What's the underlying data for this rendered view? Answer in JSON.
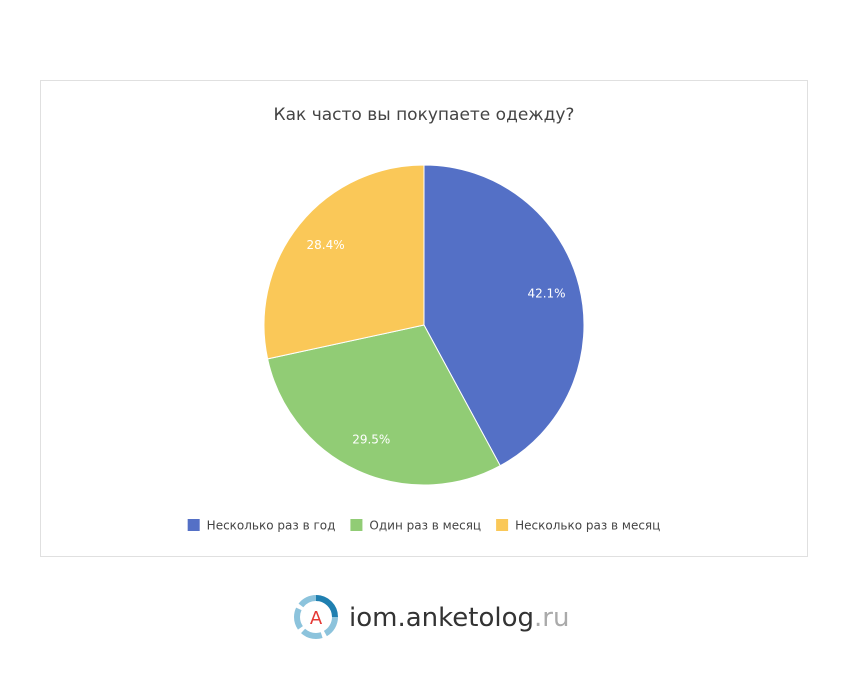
{
  "chart_data": {
    "type": "pie",
    "title": "Как часто вы покупаете одежду?",
    "categories": [
      "Несколько раз в год",
      "Один раз в месяц",
      "Несколько раз в месяц"
    ],
    "values": [
      42.1,
      29.5,
      28.4
    ],
    "value_labels": [
      "42.1%",
      "29.5%",
      "28.4%"
    ],
    "colors": [
      "#5470c6",
      "#91cc75",
      "#fac858"
    ],
    "legend": "bottom"
  },
  "footer": {
    "logo_letter": "A",
    "logo_name": "iom.anketolog",
    "logo_tld": ".ru"
  }
}
